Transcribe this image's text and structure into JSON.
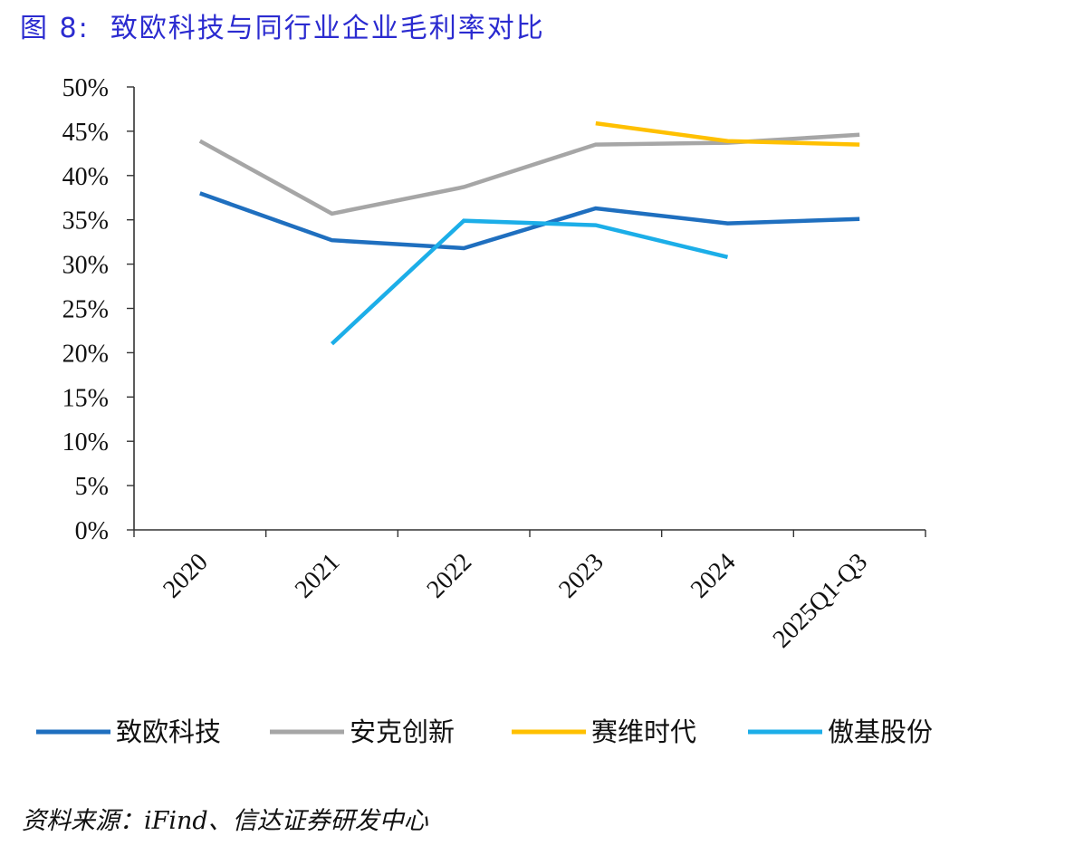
{
  "figure": {
    "title_prefix": "图 8:",
    "title_text": "致欧科技与同行业企业毛利率对比",
    "source": "资料来源：iFind、信达证券研发中心"
  },
  "chart_data": {
    "type": "line",
    "title": "图 8:  致欧科技与同行业企业毛利率对比",
    "x": [
      "2020",
      "2021",
      "2022",
      "2023",
      "2024",
      "2025Q1-Q3"
    ],
    "y_ticks": [
      "0%",
      "5%",
      "10%",
      "15%",
      "20%",
      "25%",
      "30%",
      "35%",
      "40%",
      "45%",
      "50%"
    ],
    "ylim": [
      0,
      50
    ],
    "y_unit": "%",
    "grid": false,
    "legend_position": "bottom",
    "series": [
      {
        "name": "致欧科技",
        "color": "#1F6FBF",
        "values": [
          38.0,
          32.7,
          31.8,
          36.3,
          34.6,
          35.1
        ]
      },
      {
        "name": "安克创新",
        "color": "#A6A6A6",
        "values": [
          43.9,
          35.7,
          38.7,
          43.5,
          43.7,
          44.6
        ]
      },
      {
        "name": "赛维时代",
        "color": "#FFC000",
        "values": [
          null,
          null,
          null,
          45.9,
          43.9,
          43.5
        ]
      },
      {
        "name": "傲基股份",
        "color": "#1CAEE8",
        "values": [
          null,
          21.0,
          34.9,
          34.4,
          30.8,
          null
        ]
      }
    ]
  }
}
